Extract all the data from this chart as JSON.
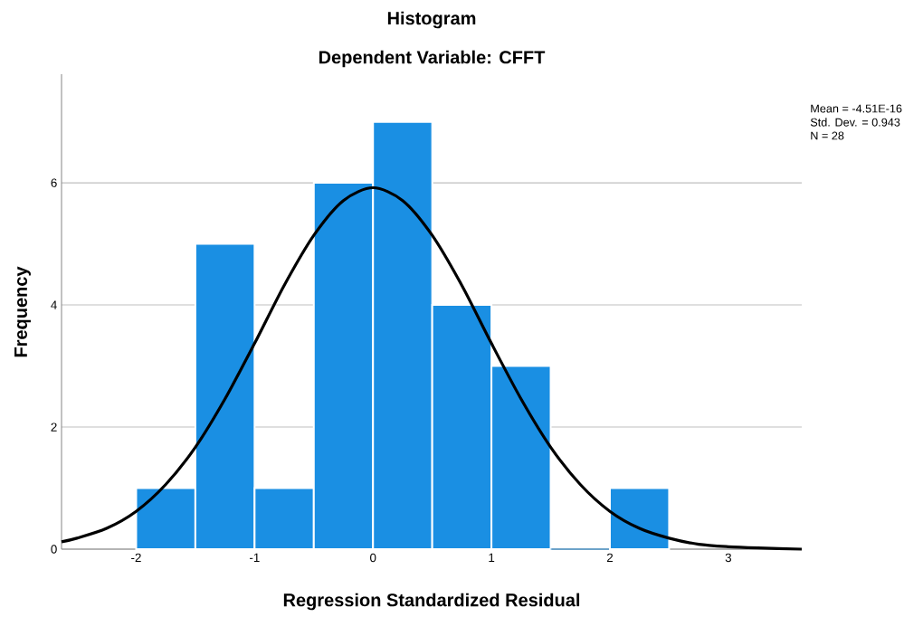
{
  "chart_data": {
    "type": "histogram",
    "title": "Histogram",
    "subtitle": "Dependent Variable: CFFT",
    "xlabel": "Regression Standardized Residual",
    "ylabel": "Frequency",
    "bins": [
      -2,
      -1.5,
      -1,
      -0.5,
      0,
      0.5,
      1,
      1.5,
      2,
      2.5
    ],
    "values": [
      1,
      5,
      1,
      6,
      7,
      4,
      3,
      0,
      1
    ],
    "color": "#1a8fe3",
    "series": [
      {
        "type": "line",
        "color": "#000000",
        "x": [
          -2.63,
          -2.5,
          -2.25,
          -2,
          -1.75,
          -1.5,
          -1.25,
          -1,
          -0.75,
          -0.5,
          -0.25,
          0,
          0.25,
          0.5,
          0.75,
          1,
          1.25,
          1.5,
          1.75,
          2,
          2.25,
          2.5,
          2.75,
          3,
          3.25,
          3.62
        ],
        "values": [
          0.12,
          0.18,
          0.34,
          0.62,
          1.06,
          1.67,
          2.46,
          3.37,
          4.32,
          5.14,
          5.71,
          5.92,
          5.71,
          5.14,
          4.32,
          3.37,
          2.46,
          1.67,
          1.06,
          0.62,
          0.34,
          0.18,
          0.08,
          0.04,
          0.02,
          0.0
        ]
      }
    ],
    "xlim": [
      -2.63,
      3.62
    ],
    "ylim": [
      0,
      7.78
    ],
    "xticks": [
      -2,
      -1,
      0,
      1,
      2,
      3
    ],
    "yticks": [
      0,
      2,
      4,
      6
    ],
    "grid": "y",
    "annotations": [
      "Mean = -4.51E-16",
      "Std. Dev. = 0.943",
      "N = 28"
    ]
  }
}
